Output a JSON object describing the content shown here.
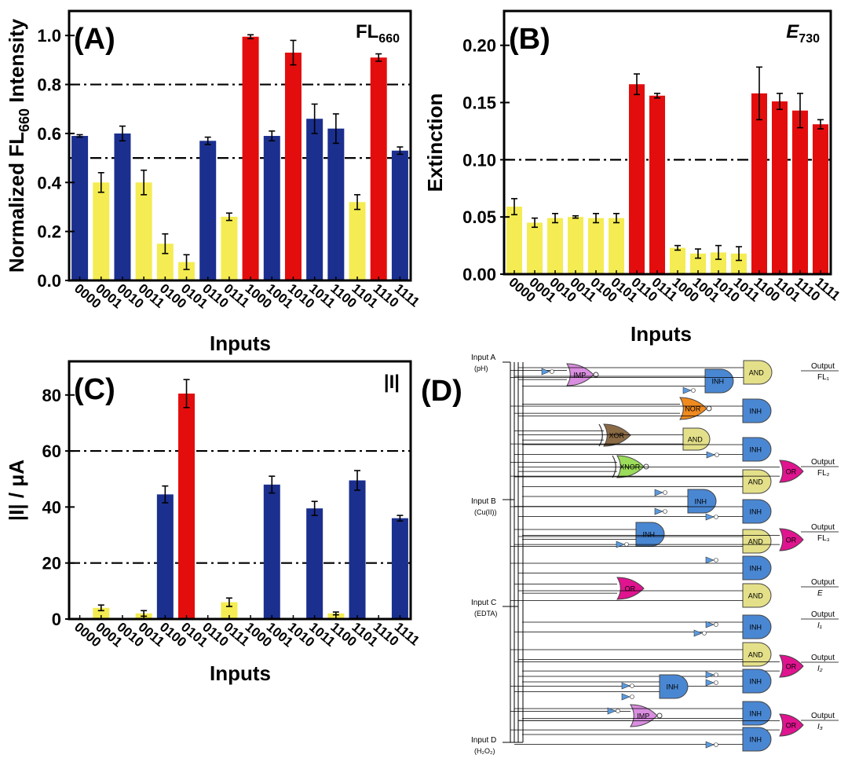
{
  "colors": {
    "blue": "#1b2f8f",
    "yellow": "#f4ec52",
    "red": "#e40d0d",
    "imp": "#d98ee0",
    "inh": "#4a87d3",
    "and": "#e4e08a",
    "or": "#e0148f",
    "nor": "#f08a1e",
    "xor": "#8b6b46",
    "xnor": "#9bdc5a",
    "buffer": "#5a9ae0"
  },
  "chart_data": [
    {
      "type": "bar",
      "panel_label": "(A)",
      "corner_label": "FL",
      "corner_label_sub": "660",
      "ylabel": "Normalized FL",
      "ylabel_sub": "660",
      "ylabel_suffix": " Intensity",
      "xlabel": "Inputs",
      "ylim": [
        0,
        1.1
      ],
      "yticks": [
        0.0,
        0.2,
        0.4,
        0.6,
        0.8,
        1.0
      ],
      "ytick_labels": [
        "0.0",
        "0.2",
        "0.4",
        "0.6",
        "0.8",
        "1.0"
      ],
      "thresholds": [
        0.8,
        0.5
      ],
      "categories": [
        "0000",
        "0001",
        "0010",
        "0011",
        "0100",
        "0101",
        "0110",
        "0111",
        "1000",
        "1001",
        "1010",
        "1011",
        "1100",
        "1101",
        "1110",
        "1111"
      ],
      "values": [
        0.59,
        0.4,
        0.6,
        0.4,
        0.15,
        0.075,
        0.57,
        0.26,
        0.995,
        0.59,
        0.93,
        0.66,
        0.62,
        0.32,
        0.91,
        0.53
      ],
      "errors": [
        0.005,
        0.04,
        0.03,
        0.05,
        0.04,
        0.03,
        0.015,
        0.015,
        0.008,
        0.02,
        0.05,
        0.06,
        0.06,
        0.03,
        0.015,
        0.015
      ],
      "colors": [
        "blue",
        "yellow",
        "blue",
        "yellow",
        "yellow",
        "yellow",
        "blue",
        "yellow",
        "red",
        "blue",
        "red",
        "blue",
        "blue",
        "yellow",
        "red",
        "blue"
      ]
    },
    {
      "type": "bar",
      "panel_label": "(B)",
      "corner_label": "E",
      "corner_label_sub": "730",
      "ylabel": "Extinction",
      "xlabel": "Inputs",
      "ylim": [
        0,
        0.23
      ],
      "yticks": [
        0.0,
        0.05,
        0.1,
        0.15,
        0.2
      ],
      "ytick_labels": [
        "0.00",
        "0.05",
        "0.10",
        "0.15",
        "0.20"
      ],
      "thresholds": [
        0.1
      ],
      "categories": [
        "0000",
        "0001",
        "0010",
        "0011",
        "0100",
        "0101",
        "0110",
        "0111",
        "1000",
        "1001",
        "1010",
        "1011",
        "1100",
        "1101",
        "1110",
        "1111"
      ],
      "values": [
        0.059,
        0.045,
        0.049,
        0.05,
        0.049,
        0.049,
        0.166,
        0.156,
        0.023,
        0.018,
        0.019,
        0.018,
        0.158,
        0.151,
        0.143,
        0.131
      ],
      "errors": [
        0.007,
        0.004,
        0.004,
        0.001,
        0.004,
        0.004,
        0.009,
        0.002,
        0.002,
        0.004,
        0.006,
        0.006,
        0.023,
        0.007,
        0.015,
        0.004
      ],
      "colors": [
        "yellow",
        "yellow",
        "yellow",
        "yellow",
        "yellow",
        "yellow",
        "red",
        "red",
        "yellow",
        "yellow",
        "yellow",
        "yellow",
        "red",
        "red",
        "red",
        "red"
      ]
    },
    {
      "type": "bar",
      "panel_label": "(C)",
      "corner_label": "|I|",
      "ylabel": "|I| / μA",
      "xlabel": "Inputs",
      "ylim": [
        0,
        92
      ],
      "yticks": [
        0,
        20,
        40,
        60,
        80
      ],
      "ytick_labels": [
        "0",
        "20",
        "40",
        "60",
        "80"
      ],
      "thresholds": [
        60,
        20
      ],
      "categories": [
        "0000",
        "0001",
        "0010",
        "0011",
        "0100",
        "0101",
        "0110",
        "0111",
        "1000",
        "1001",
        "1010",
        "1011",
        "1100",
        "1101",
        "1110",
        "1111"
      ],
      "values": [
        0.3,
        4,
        0.3,
        2,
        44.5,
        80.5,
        0.3,
        6,
        0.3,
        48,
        0.3,
        39.5,
        2,
        49.5,
        0.3,
        36
      ],
      "errors": [
        0,
        1,
        0,
        1,
        3,
        5,
        0,
        1.5,
        0,
        3,
        0,
        2.5,
        0.5,
        3.5,
        0,
        1
      ],
      "colors": [
        "yellow",
        "yellow",
        "yellow",
        "yellow",
        "blue",
        "red",
        "yellow",
        "yellow",
        "yellow",
        "blue",
        "yellow",
        "blue",
        "yellow",
        "blue",
        "yellow",
        "blue"
      ]
    }
  ],
  "diagram": {
    "panel_label": "(D)",
    "inputs": [
      {
        "name": "Input A",
        "sub": "(pH)"
      },
      {
        "name": "Input B",
        "sub": "(Cu(II))"
      },
      {
        "name": "Input C",
        "sub": "(EDTA)"
      },
      {
        "name": "Input D",
        "sub": "(H₂O₂)"
      }
    ],
    "outputs": [
      {
        "label": "Output",
        "sub": "FL₁"
      },
      {
        "label": "Output",
        "sub": "FL₂"
      },
      {
        "label": "Output",
        "sub": "FL₃"
      },
      {
        "label": "Output",
        "sub": "E"
      },
      {
        "label": "Output",
        "sub": "I₁"
      },
      {
        "label": "Output",
        "sub": "I₂"
      },
      {
        "label": "Output",
        "sub": "I₃"
      }
    ],
    "gates": [
      {
        "type": "IMP",
        "text": "IMP"
      },
      {
        "type": "INH",
        "text": "INH"
      },
      {
        "type": "AND",
        "text": "AND"
      },
      {
        "type": "NOR",
        "text": "NOR"
      },
      {
        "type": "INH",
        "text": "INH"
      },
      {
        "type": "XOR",
        "text": "XOR"
      },
      {
        "type": "AND",
        "text": "AND"
      },
      {
        "type": "INH",
        "text": "INH"
      },
      {
        "type": "XNOR",
        "text": "XNOR"
      },
      {
        "type": "AND",
        "text": "AND"
      },
      {
        "type": "OR",
        "text": "OR"
      },
      {
        "type": "INH",
        "text": "INH"
      },
      {
        "type": "INH",
        "text": "INH"
      },
      {
        "type": "INH",
        "text": "INH"
      },
      {
        "type": "AND",
        "text": "AND"
      },
      {
        "type": "OR",
        "text": "OR"
      },
      {
        "type": "INH",
        "text": "INH"
      },
      {
        "type": "OR",
        "text": "OR"
      },
      {
        "type": "AND",
        "text": "AND"
      },
      {
        "type": "INH",
        "text": "INH"
      },
      {
        "type": "AND",
        "text": "AND"
      },
      {
        "type": "OR",
        "text": "OR"
      },
      {
        "type": "INH",
        "text": "INH"
      },
      {
        "type": "INH",
        "text": "INH"
      },
      {
        "type": "IMP",
        "text": "IMP"
      },
      {
        "type": "INH",
        "text": "INH"
      },
      {
        "type": "OR",
        "text": "OR"
      },
      {
        "type": "INH",
        "text": "INH"
      }
    ]
  }
}
